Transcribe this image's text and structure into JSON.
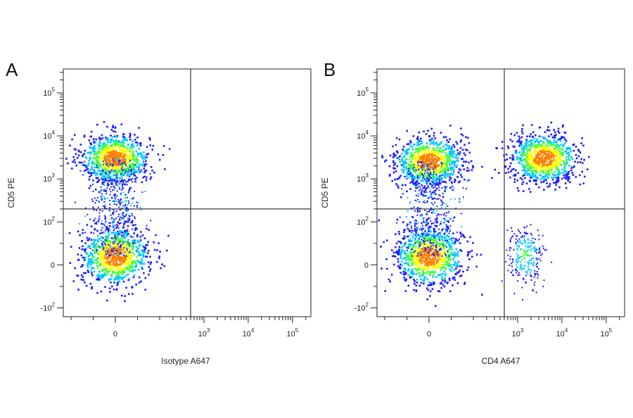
{
  "chart_data": [
    {
      "type": "scatter",
      "panel_letter": "A",
      "xlabel": "Isotype A647",
      "ylabel": "CD5 PE",
      "x_scale": "biexponential",
      "y_scale": "biexponential",
      "x_ticks": [
        {
          "value": 0,
          "base": "0",
          "exp": ""
        },
        {
          "value": 1000,
          "base": "10",
          "exp": "3"
        },
        {
          "value": 10000,
          "base": "10",
          "exp": "4"
        },
        {
          "value": 100000,
          "base": "10",
          "exp": "5"
        }
      ],
      "y_ticks": [
        {
          "value": 100000,
          "base": "10",
          "exp": "5"
        },
        {
          "value": 10000,
          "base": "10",
          "exp": "4"
        },
        {
          "value": 1000,
          "base": "10",
          "exp": "3"
        },
        {
          "value": 100,
          "base": "10",
          "exp": "2"
        },
        {
          "value": 0,
          "base": "0",
          "exp": ""
        },
        {
          "value": -100,
          "base": "-10",
          "exp": "2"
        }
      ],
      "gate_x": 500,
      "gate_y": 200,
      "populations": [
        {
          "name": "CD5+ isotype-",
          "center_x": 0,
          "center_y": 3000,
          "density": "high"
        },
        {
          "name": "CD5- isotype-",
          "center_x": 0,
          "center_y": 20,
          "density": "high"
        }
      ],
      "color_scale": [
        "#1a1aff",
        "#00c8ff",
        "#40ff40",
        "#ffff00",
        "#ff8000",
        "#e00000"
      ]
    },
    {
      "type": "scatter",
      "panel_letter": "B",
      "xlabel": "CD4 A647",
      "ylabel": "CD5 PE",
      "x_scale": "biexponential",
      "y_scale": "biexponential",
      "x_ticks": [
        {
          "value": 0,
          "base": "0",
          "exp": ""
        },
        {
          "value": 1000,
          "base": "10",
          "exp": "3"
        },
        {
          "value": 10000,
          "base": "10",
          "exp": "4"
        },
        {
          "value": 100000,
          "base": "10",
          "exp": "5"
        }
      ],
      "y_ticks": [
        {
          "value": 100000,
          "base": "10",
          "exp": "5"
        },
        {
          "value": 10000,
          "base": "10",
          "exp": "4"
        },
        {
          "value": 1000,
          "base": "10",
          "exp": "3"
        },
        {
          "value": 100,
          "base": "10",
          "exp": "2"
        },
        {
          "value": 0,
          "base": "0",
          "exp": ""
        },
        {
          "value": -100,
          "base": "-10",
          "exp": "2"
        }
      ],
      "gate_x": 500,
      "gate_y": 200,
      "populations": [
        {
          "name": "CD5+ CD4-",
          "center_x": 0,
          "center_y": 2500,
          "density": "high"
        },
        {
          "name": "CD5+ CD4+",
          "center_x": 4000,
          "center_y": 3000,
          "density": "high"
        },
        {
          "name": "CD5- CD4-",
          "center_x": 0,
          "center_y": 20,
          "density": "high"
        },
        {
          "name": "CD5- CD4+",
          "center_x": 1500,
          "center_y": 20,
          "density": "low"
        }
      ],
      "color_scale": [
        "#1a1aff",
        "#00c8ff",
        "#40ff40",
        "#ffff00",
        "#ff8000",
        "#e00000"
      ]
    }
  ]
}
